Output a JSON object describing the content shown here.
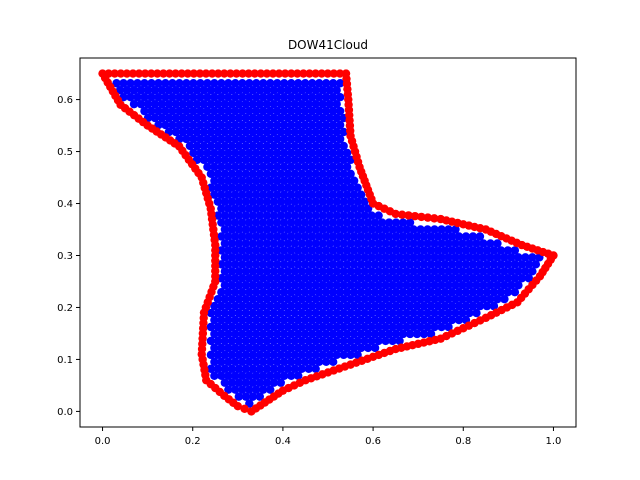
{
  "chart_data": {
    "type": "scatter",
    "title": "DOW41Cloud",
    "xlabel": "",
    "ylabel": "",
    "xlim": [
      -0.05,
      1.05
    ],
    "ylim": [
      -0.03,
      0.68
    ],
    "xticks": [
      0.0,
      0.2,
      0.4,
      0.6,
      0.8,
      1.0
    ],
    "xtick_labels": [
      "0.0",
      "0.2",
      "0.4",
      "0.6",
      "0.8",
      "1.0"
    ],
    "yticks": [
      0.0,
      0.1,
      0.2,
      0.3,
      0.4,
      0.5,
      0.6
    ],
    "ytick_labels": [
      "0.0",
      "0.1",
      "0.2",
      "0.3",
      "0.4",
      "0.5",
      "0.6"
    ],
    "grid": false,
    "marker_spacing": 0.0135,
    "series": [
      {
        "color": "#ff0000",
        "role": "boundary",
        "outline": [
          [
            0.0,
            0.65
          ],
          [
            0.54,
            0.65
          ],
          [
            0.545,
            0.6
          ],
          [
            0.55,
            0.53
          ],
          [
            0.57,
            0.47
          ],
          [
            0.6,
            0.4
          ],
          [
            0.65,
            0.38
          ],
          [
            0.75,
            0.37
          ],
          [
            0.85,
            0.35
          ],
          [
            0.93,
            0.32
          ],
          [
            1.0,
            0.3
          ],
          [
            0.97,
            0.26
          ],
          [
            0.92,
            0.21
          ],
          [
            0.85,
            0.18
          ],
          [
            0.75,
            0.14
          ],
          [
            0.65,
            0.12
          ],
          [
            0.55,
            0.09
          ],
          [
            0.45,
            0.06
          ],
          [
            0.4,
            0.04
          ],
          [
            0.33,
            0.0
          ],
          [
            0.3,
            0.01
          ],
          [
            0.27,
            0.03
          ],
          [
            0.23,
            0.06
          ],
          [
            0.22,
            0.11
          ],
          [
            0.225,
            0.19
          ],
          [
            0.25,
            0.25
          ],
          [
            0.25,
            0.32
          ],
          [
            0.24,
            0.39
          ],
          [
            0.22,
            0.45
          ],
          [
            0.17,
            0.51
          ],
          [
            0.1,
            0.55
          ],
          [
            0.04,
            0.59
          ],
          [
            0.0,
            0.65
          ]
        ]
      },
      {
        "color": "#0000ff",
        "role": "interior",
        "grid_step_x": 0.0155,
        "grid_step_y": 0.0134
      }
    ]
  }
}
